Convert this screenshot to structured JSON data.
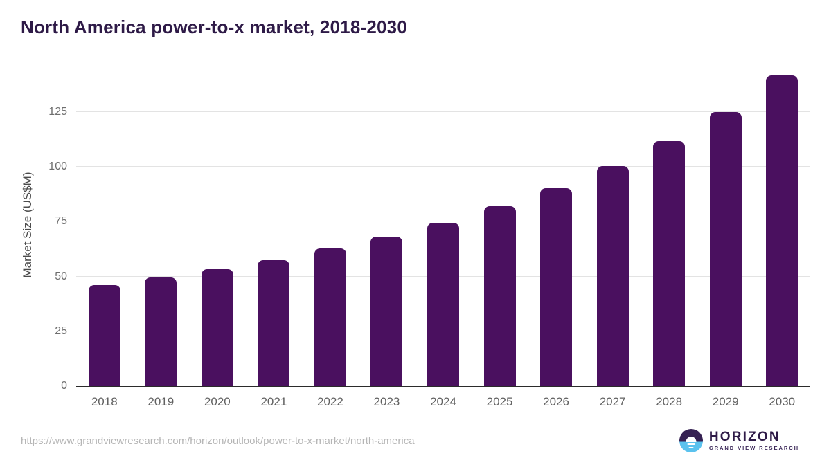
{
  "header": {
    "title": "North America power-to-x market, 2018-2030"
  },
  "chart_data": {
    "type": "bar",
    "title": "North America power-to-x market, 2018-2030",
    "categories": [
      "2018",
      "2019",
      "2020",
      "2021",
      "2022",
      "2023",
      "2024",
      "2025",
      "2026",
      "2027",
      "2028",
      "2029",
      "2030"
    ],
    "values": [
      46,
      49.5,
      53.2,
      57.6,
      62.8,
      68.3,
      74.4,
      82,
      90.2,
      100.4,
      111.8,
      125,
      141.8
    ],
    "xlabel": "",
    "ylabel": "Market Size (US$M)",
    "ylim": [
      0,
      144.6
    ],
    "yticks": [
      0,
      25,
      50,
      75,
      100,
      125
    ],
    "grid": true,
    "legend_position": "none",
    "bar_color": "#4a105f"
  },
  "footer": {
    "source_url": "https://www.grandviewresearch.com/horizon/outlook/power-to-x-market/north-america",
    "logo": {
      "brand": "HORIZON",
      "sub_brand": "GRAND VIEW RESEARCH"
    }
  },
  "colors": {
    "title": "#2e1a47",
    "bar": "#4a105f",
    "gridline": "#e3e3e3",
    "axis_line": "#2b2b2b",
    "tick_text": "#6e6e6e",
    "url_text": "#b5b5b5",
    "logo_purple": "#362153",
    "logo_blue": "#5bc2ee"
  }
}
